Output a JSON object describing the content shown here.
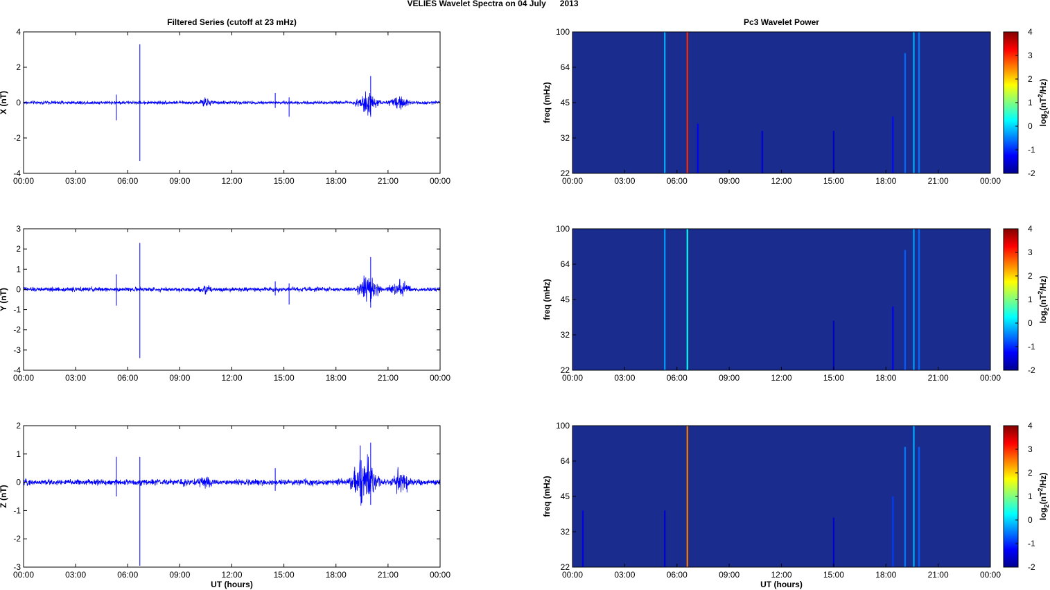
{
  "suptitle": "VELIES Wavelet Spectra on 04 July      2013",
  "left_title": "Filtered Series (cutoff at 23 mHz)",
  "right_title": "Pc3 Wavelet Power",
  "x_axis_label": "UT (hours)",
  "time_ticks": [
    "00:00",
    "03:00",
    "06:00",
    "09:00",
    "12:00",
    "15:00",
    "18:00",
    "21:00",
    "00:00"
  ],
  "freq_label": "freq (mHz)",
  "freq_ticks": [
    "100",
    "64",
    "45",
    "32",
    "22"
  ],
  "colorbar_label": "log2(nT2/Hz)",
  "colorbar_label_parts": {
    "base": "log",
    "sub": "2",
    "mid": "(nT",
    "sup": "2",
    "end": "/Hz)"
  },
  "colorbar_ticks": [
    "4",
    "3",
    "2",
    "1",
    "0",
    "-1",
    "-2"
  ],
  "colors": {
    "trace": "#0000ff",
    "heatmap_bg": "#1a2d8e",
    "axis": "#000000"
  },
  "chart_data": [
    {
      "type": "line",
      "name": "X filtered series",
      "title": "Filtered Series (cutoff at 23 mHz)",
      "ylabel": "X (nT)",
      "xlabel": "",
      "xlim": [
        0,
        24
      ],
      "ylim": [
        -4,
        4
      ],
      "yticks": [
        "4",
        "2",
        "0",
        "-2",
        "-4"
      ],
      "baseline_amplitude": 0.09,
      "bursts": [
        [
          19.1,
          20.6,
          0.75
        ],
        [
          21.0,
          22.4,
          0.35
        ],
        [
          10.0,
          11.0,
          0.15
        ]
      ],
      "spikes": [
        [
          5.35,
          0.45,
          -1.0
        ],
        [
          6.7,
          3.3,
          -3.3
        ],
        [
          14.5,
          0.55,
          -0.3
        ],
        [
          15.3,
          0.3,
          -0.8
        ],
        [
          20.0,
          1.5,
          -0.8
        ]
      ],
      "grid": false
    },
    {
      "type": "line",
      "name": "Y filtered series",
      "title": "",
      "ylabel": "Y (nT)",
      "xlabel": "",
      "xlim": [
        0,
        24
      ],
      "ylim": [
        -4,
        3
      ],
      "yticks": [
        "3",
        "2",
        "1",
        "0",
        "-1",
        "-2",
        "-3",
        "-4"
      ],
      "baseline_amplitude": 0.1,
      "bursts": [
        [
          19.2,
          20.6,
          0.9
        ],
        [
          21.0,
          22.4,
          0.4
        ],
        [
          10.0,
          11.0,
          0.15
        ]
      ],
      "spikes": [
        [
          5.35,
          0.75,
          -0.8
        ],
        [
          6.7,
          2.3,
          -3.4
        ],
        [
          14.5,
          0.4,
          -0.3
        ],
        [
          15.3,
          0.3,
          -0.75
        ],
        [
          20.0,
          1.6,
          -0.9
        ]
      ],
      "grid": false
    },
    {
      "type": "line",
      "name": "Z filtered series",
      "title": "",
      "ylabel": "Z (nT)",
      "xlabel": "UT (hours)",
      "xlim": [
        0,
        24
      ],
      "ylim": [
        -3,
        2
      ],
      "yticks": [
        "2",
        "1",
        "0",
        "-1",
        "-2",
        "-3"
      ],
      "baseline_amplitude": 0.1,
      "bursts": [
        [
          18.7,
          20.6,
          0.9
        ],
        [
          21.0,
          22.4,
          0.4
        ],
        [
          10.0,
          11.0,
          0.15
        ]
      ],
      "spikes": [
        [
          5.35,
          0.9,
          -0.5
        ],
        [
          6.7,
          0.9,
          -2.95
        ],
        [
          14.5,
          0.5,
          -0.3
        ],
        [
          19.4,
          1.3,
          -0.5
        ],
        [
          20.0,
          1.4,
          -0.8
        ]
      ],
      "grid": false
    },
    {
      "type": "heatmap",
      "name": "X wavelet power",
      "title": "Pc3 Wavelet Power",
      "xlabel": "",
      "ylabel": "freq (mHz)",
      "xlim": [
        0,
        24
      ],
      "ylim": [
        22,
        100
      ],
      "colorbar_range": [
        -2,
        4
      ],
      "features": [
        [
          5.3,
          -0.2,
          1.0
        ],
        [
          6.6,
          3.0,
          1.0
        ],
        [
          7.2,
          -1.3,
          0.35
        ],
        [
          10.9,
          -1.5,
          0.3
        ],
        [
          15.0,
          -1.6,
          0.3
        ],
        [
          18.4,
          -1.2,
          0.4
        ],
        [
          19.1,
          -0.6,
          0.85
        ],
        [
          19.6,
          -0.2,
          1.0
        ],
        [
          19.9,
          -0.5,
          1.0
        ]
      ]
    },
    {
      "type": "heatmap",
      "name": "Y wavelet power",
      "title": "",
      "xlabel": "",
      "ylabel": "freq (mHz)",
      "xlim": [
        0,
        24
      ],
      "ylim": [
        22,
        100
      ],
      "colorbar_range": [
        -2,
        4
      ],
      "features": [
        [
          5.3,
          -0.3,
          1.0
        ],
        [
          6.6,
          0.3,
          1.0
        ],
        [
          15.0,
          -1.6,
          0.35
        ],
        [
          18.4,
          -1.3,
          0.45
        ],
        [
          19.1,
          -0.7,
          0.85
        ],
        [
          19.6,
          -0.3,
          1.0
        ],
        [
          19.9,
          -0.6,
          1.0
        ]
      ]
    },
    {
      "type": "heatmap",
      "name": "Z wavelet power",
      "title": "",
      "xlabel": "UT (hours)",
      "ylabel": "freq (mHz)",
      "xlim": [
        0,
        24
      ],
      "ylim": [
        22,
        100
      ],
      "colorbar_range": [
        -2,
        4
      ],
      "features": [
        [
          0.6,
          -1.4,
          0.4
        ],
        [
          5.3,
          -1.5,
          0.4
        ],
        [
          6.6,
          2.5,
          1.0
        ],
        [
          15.0,
          -1.5,
          0.35
        ],
        [
          18.4,
          -0.9,
          0.5
        ],
        [
          19.1,
          -0.5,
          0.85
        ],
        [
          19.6,
          -0.2,
          1.0
        ],
        [
          19.9,
          -0.7,
          0.85
        ]
      ]
    }
  ]
}
